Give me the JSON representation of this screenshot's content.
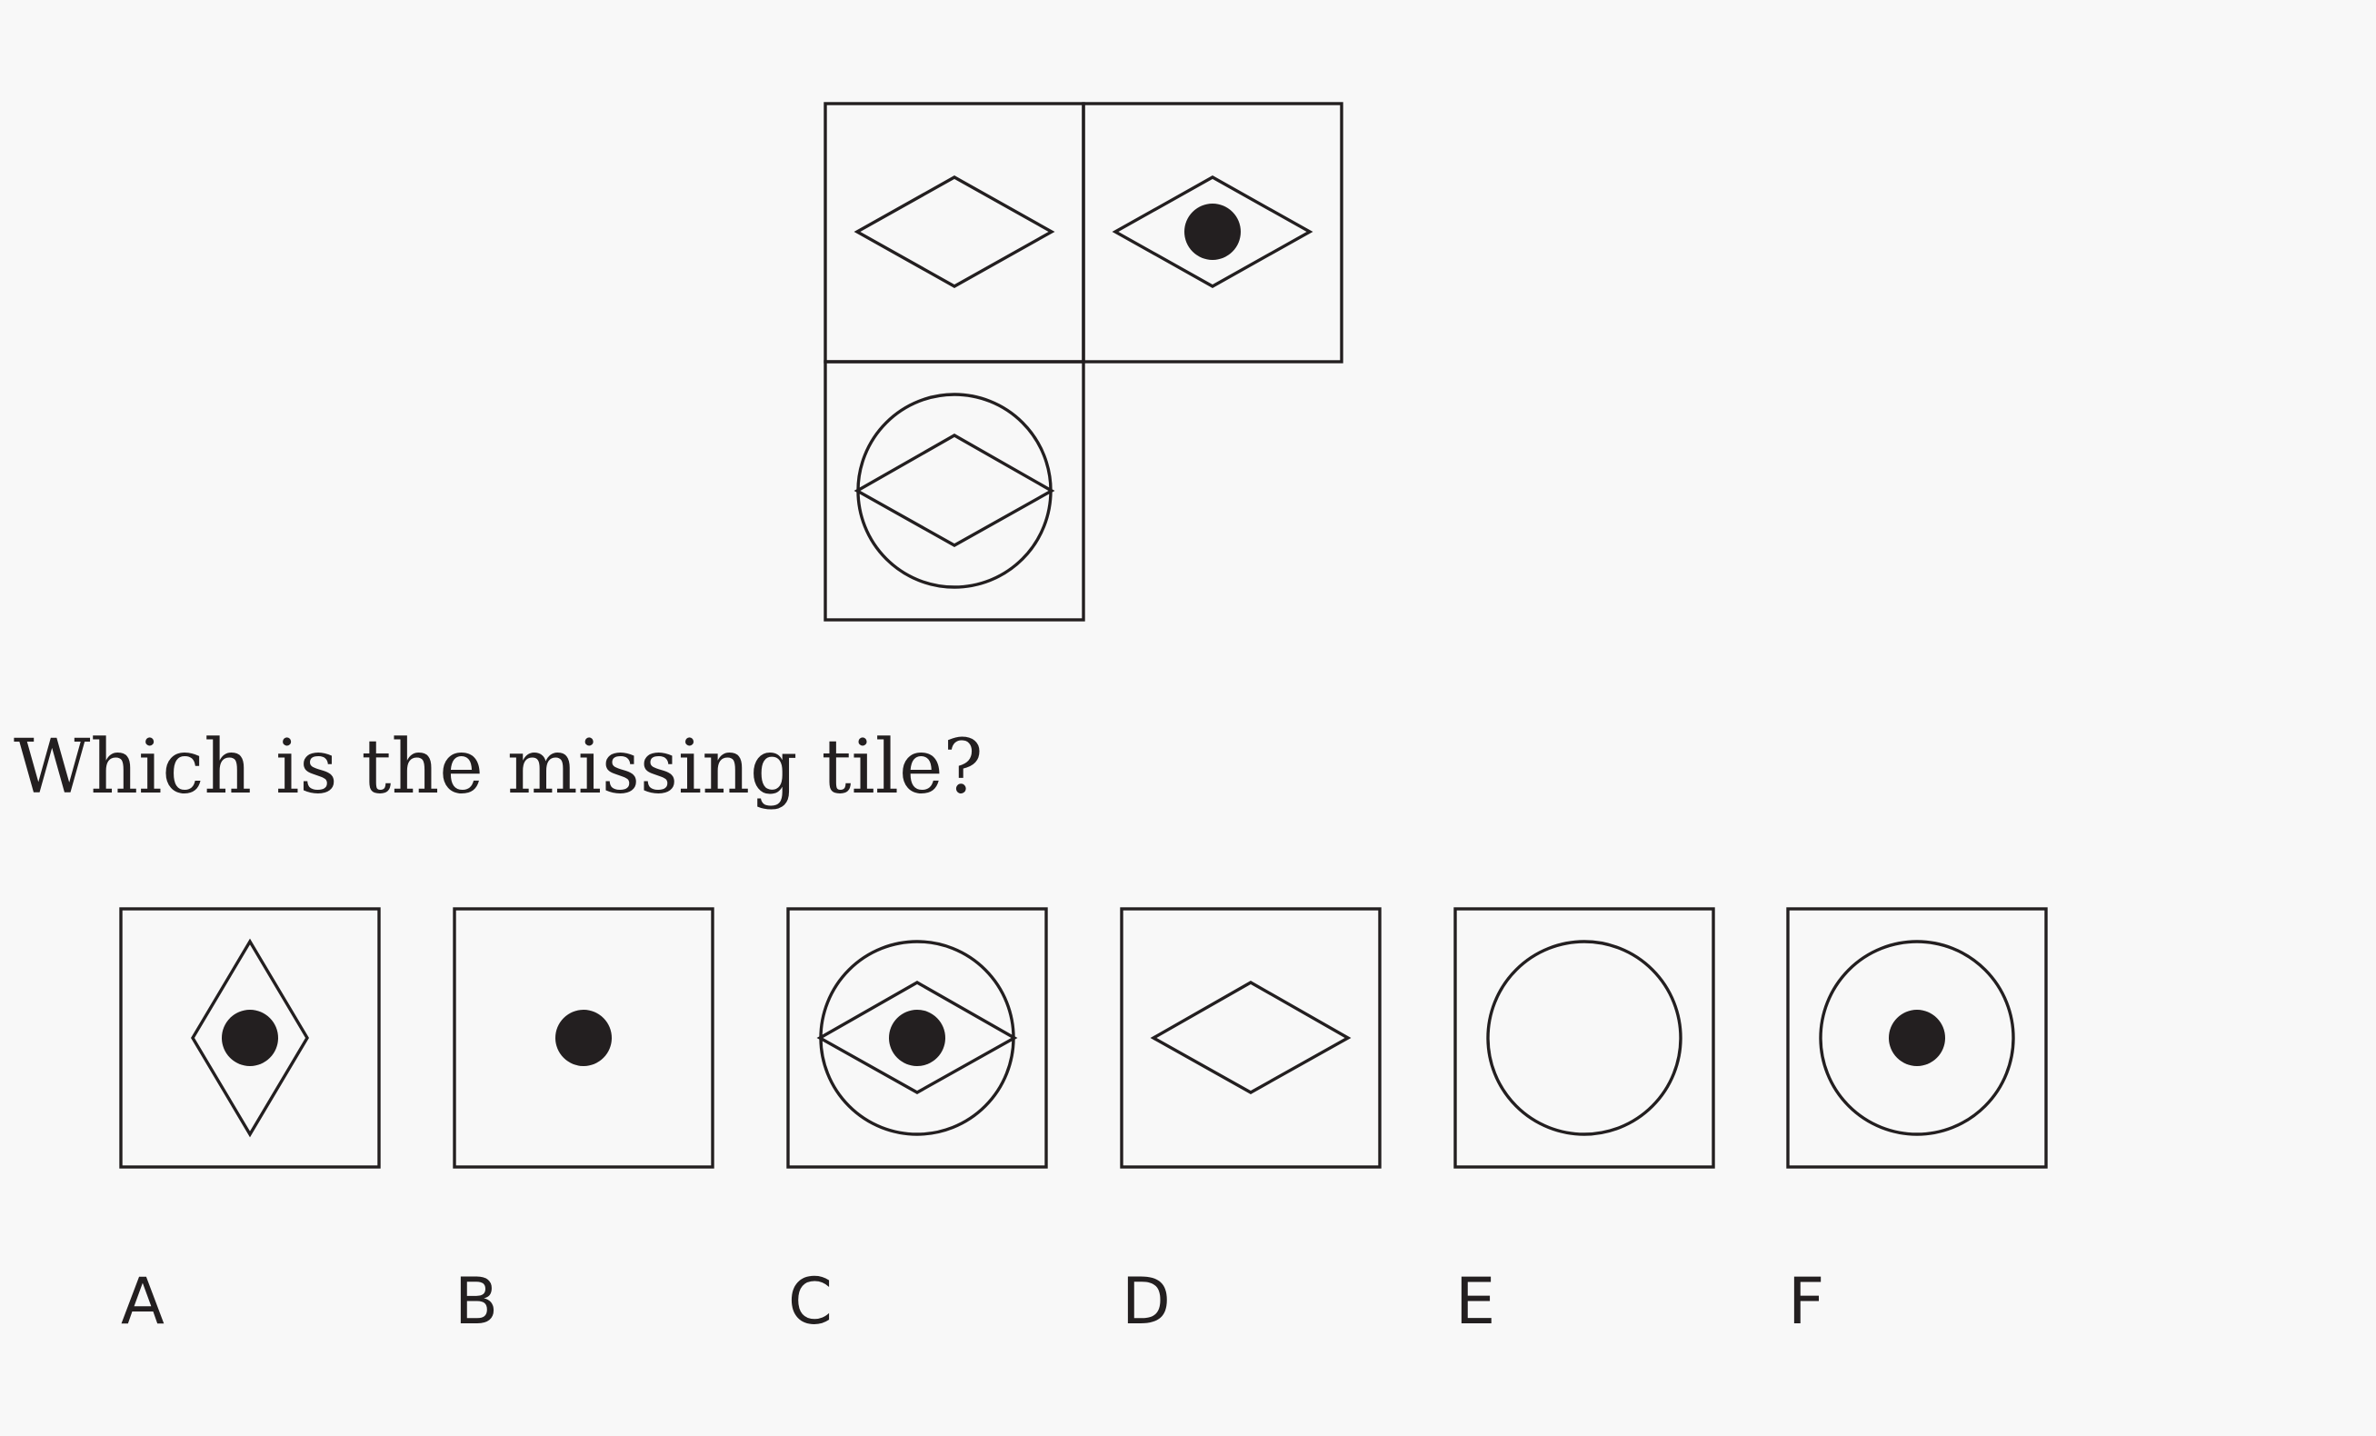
{
  "question": "Which is the missing tile?",
  "puzzle": {
    "tiles": [
      {
        "position": "top-left",
        "shapes": [
          "diamond"
        ]
      },
      {
        "position": "top-right",
        "shapes": [
          "diamond",
          "dot"
        ]
      },
      {
        "position": "bottom-left",
        "shapes": [
          "circle",
          "diamond"
        ]
      },
      {
        "position": "bottom-right",
        "shapes": [
          "missing"
        ]
      }
    ]
  },
  "options": [
    {
      "label": "A",
      "shapes": [
        "vertical-diamond",
        "dot"
      ]
    },
    {
      "label": "B",
      "shapes": [
        "dot"
      ]
    },
    {
      "label": "C",
      "shapes": [
        "circle",
        "diamond",
        "dot"
      ]
    },
    {
      "label": "D",
      "shapes": [
        "diamond"
      ]
    },
    {
      "label": "E",
      "shapes": [
        "circle"
      ]
    },
    {
      "label": "F",
      "shapes": [
        "circle",
        "dot"
      ]
    }
  ],
  "colors": {
    "background": "#f8f8f8",
    "ink": "#231f20"
  }
}
